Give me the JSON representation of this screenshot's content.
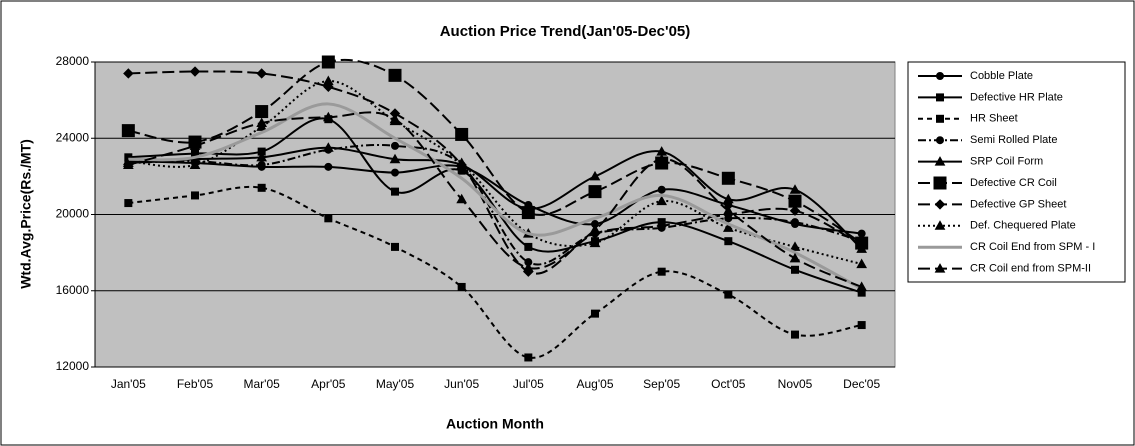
{
  "chart_data": {
    "type": "line",
    "title": "Auction Price Trend(Jan'05-Dec'05)",
    "x_label": "Auction Month",
    "y_label": "Wtd.Avg.Price(Rs./MT)",
    "categories": [
      "Jan'05",
      "Feb'05",
      "Mar'05",
      "Apr'05",
      "May'05",
      "Jun'05",
      "Jul'05",
      "Aug'05",
      "Sep'05",
      "Oct'05",
      "Nov05",
      "Dec'05"
    ],
    "ylim": [
      12000,
      28000
    ],
    "yticks": [
      12000,
      16000,
      20000,
      24000,
      28000
    ],
    "grid": true,
    "legend": "right",
    "series": [
      {
        "name": "Cobble Plate",
        "color": "#000000",
        "marker": "circle",
        "dash": "solid",
        "values": [
          22800,
          22700,
          22500,
          22500,
          22200,
          22500,
          20500,
          19500,
          21300,
          20500,
          19500,
          19000
        ]
      },
      {
        "name": "Defective HR Plate",
        "color": "#000000",
        "marker": "square",
        "dash": "solid",
        "values": [
          23000,
          23200,
          23300,
          25000,
          21200,
          22300,
          18300,
          18600,
          19600,
          18600,
          17100,
          15900
        ]
      },
      {
        "name": "HR Sheet",
        "color": "#000000",
        "marker": "square",
        "dash": "dash",
        "values": [
          20600,
          21000,
          21400,
          19800,
          18300,
          16200,
          12500,
          14800,
          17000,
          15800,
          13700,
          14200
        ]
      },
      {
        "name": "Semi Rolled Plate",
        "color": "#000000",
        "marker": "circle",
        "dash": "dashdot",
        "values": [
          22700,
          22800,
          22600,
          23400,
          23600,
          22600,
          17500,
          19000,
          19300,
          19800,
          19600,
          18600
        ]
      },
      {
        "name": "SRP Coil Form",
        "color": "#000000",
        "marker": "triangle",
        "dash": "solid",
        "values": [
          22700,
          22900,
          23000,
          23500,
          22900,
          22600,
          20300,
          22000,
          23300,
          20800,
          21300,
          18200
        ]
      },
      {
        "name": "Defective CR Coil",
        "color": "#000000",
        "marker": "bigsquare",
        "dash": "longdash",
        "values": [
          24400,
          23800,
          25400,
          28000,
          27300,
          24200,
          20100,
          21200,
          22700,
          21900,
          20700,
          18500
        ]
      },
      {
        "name": "Defective GP Sheet",
        "color": "#000000",
        "marker": "diamond",
        "dash": "longdash",
        "values": [
          27400,
          27500,
          27400,
          26700,
          25300,
          22600,
          17000,
          19000,
          19400,
          20000,
          20200,
          18400
        ]
      },
      {
        "name": "Def. Chequered Plate",
        "color": "#000000",
        "marker": "triangle",
        "dash": "dot",
        "values": [
          22800,
          22600,
          24600,
          27000,
          24900,
          22700,
          19000,
          18500,
          20700,
          19300,
          18300,
          17400
        ]
      },
      {
        "name": "CR Coil End from SPM - I",
        "color": "#9a9a9a",
        "marker": "none",
        "dash": "solid",
        "values": [
          22900,
          23000,
          24300,
          25800,
          24000,
          21900,
          19000,
          19800,
          21000,
          19500,
          18000,
          16100
        ]
      },
      {
        "name": "CR Coil end from SPM-II",
        "color": "#000000",
        "marker": "triangle",
        "dash": "longdash",
        "values": [
          22600,
          23600,
          24800,
          25100,
          25000,
          20800,
          17200,
          19200,
          22900,
          20200,
          17700,
          16200
        ]
      }
    ]
  }
}
